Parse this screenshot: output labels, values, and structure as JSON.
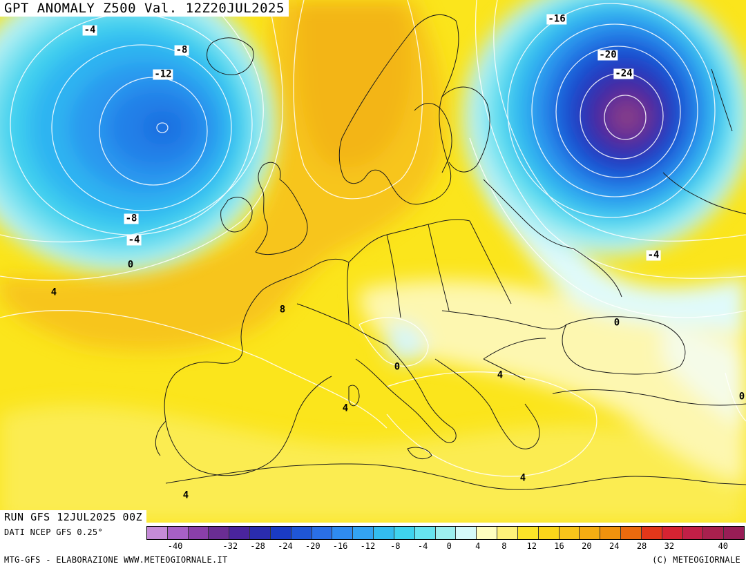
{
  "header": {
    "title": "GPT ANOMALY Z500 Val. 12Z20JUL2025"
  },
  "contour_labels": [
    {
      "text": "-4",
      "name": "label-minus4-iceland-west"
    },
    {
      "text": "-8",
      "name": "label-minus8-iceland"
    },
    {
      "text": "-12",
      "name": "label-minus12-atlantic"
    },
    {
      "text": "-16",
      "name": "label-minus16-russia"
    },
    {
      "text": "-20",
      "name": "label-minus20-russia"
    },
    {
      "text": "-24",
      "name": "label-minus24-russia"
    },
    {
      "text": "-8",
      "name": "label-minus8-ireland"
    },
    {
      "text": "-4",
      "name": "label-minus4-ireland"
    },
    {
      "text": "0",
      "name": "label-zero-atlantic"
    },
    {
      "text": "4",
      "name": "label-plus4-atlantic"
    },
    {
      "text": "8",
      "name": "label-plus8-france"
    },
    {
      "text": "-4",
      "name": "label-minus4-ukraine"
    },
    {
      "text": "0",
      "name": "label-zero-blacksea"
    },
    {
      "text": "0",
      "name": "label-zero-adriatic"
    },
    {
      "text": "4",
      "name": "label-plus4-balkans"
    },
    {
      "text": "4",
      "name": "label-plus4-mediterranean"
    },
    {
      "text": "4",
      "name": "label-plus4-aegean"
    },
    {
      "text": "4",
      "name": "label-plus4-africa"
    },
    {
      "text": "0",
      "name": "label-zero-east-edge"
    }
  ],
  "footer": {
    "run": "RUN GFS 12JUL2025 00Z",
    "data_source": "DATI NCEP GFS 0.25°",
    "credit": "MTG-GFS - ELABORAZIONE WWW.METEOGIORNALE.IT",
    "copyright": "(C) METEOGIORNALE"
  },
  "colorbar": {
    "colors": [
      "#c58bd8",
      "#a760c6",
      "#8a3fa9",
      "#6a2d93",
      "#4a249c",
      "#2a2cae",
      "#1a3bc4",
      "#1f56d6",
      "#2a6fe6",
      "#2f8bef",
      "#33a3f2",
      "#33bcef",
      "#3fd3ee",
      "#67e4f0",
      "#9defef",
      "#d5fafa",
      "#ffffc0",
      "#fff27a",
      "#fce428",
      "#fbd61a",
      "#f8c41a",
      "#f5ad12",
      "#f1920d",
      "#eb6a0e",
      "#e2371a",
      "#d62332",
      "#c21f47",
      "#a8204e",
      "#981d56"
    ],
    "ticks": [
      "-40",
      "-32",
      "-28",
      "-24",
      "-20",
      "-16",
      "-12",
      "-8",
      "-4",
      "0",
      "4",
      "8",
      "12",
      "16",
      "20",
      "24",
      "28",
      "32",
      "40"
    ]
  }
}
